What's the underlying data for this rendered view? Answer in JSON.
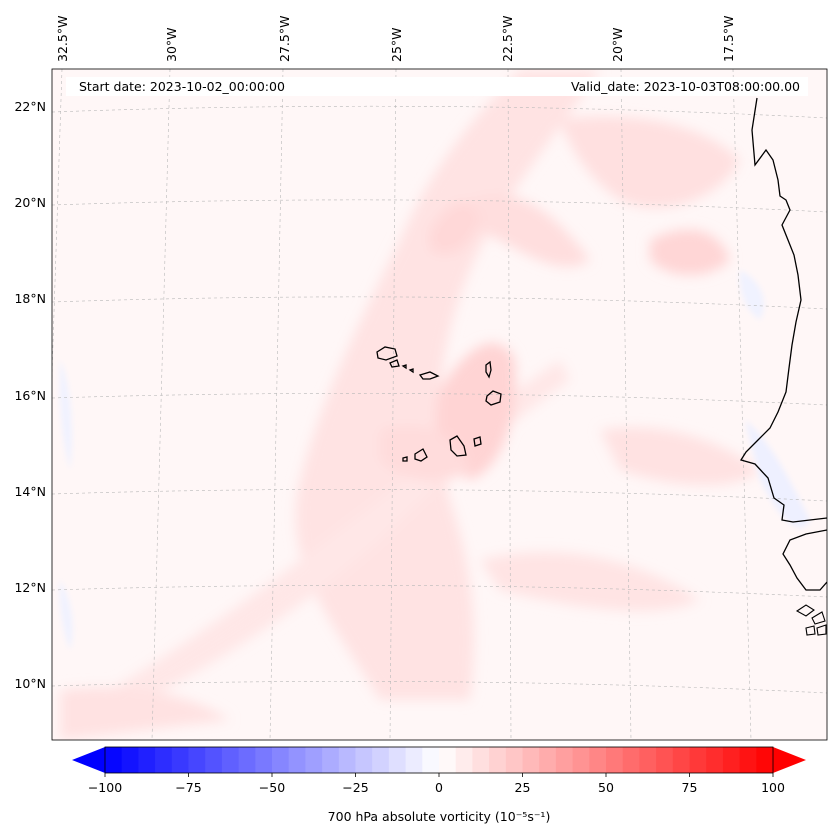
{
  "header": {
    "start_date": "Start date: 2023-10-02_00:00:00",
    "valid_date": "Valid_date: 2023-10-03T08:00:00.00"
  },
  "longitude_ticks": [
    "32.5°W",
    "30°W",
    "27.5°W",
    "25°W",
    "22.5°W",
    "20°W",
    "17.5°W"
  ],
  "latitude_ticks": [
    "22°N",
    "20°N",
    "18°N",
    "16°N",
    "14°N",
    "12°N",
    "10°N"
  ],
  "colorbar": {
    "label": "700 hPa absolute vorticity (10⁻⁵s⁻¹)",
    "min": -100,
    "max": 100,
    "ticks": [
      "−100",
      "−75",
      "−50",
      "−25",
      "0",
      "25",
      "50",
      "75",
      "100"
    ],
    "tick_values": [
      -100,
      -75,
      -50,
      -25,
      0,
      25,
      50,
      75,
      100
    ],
    "step": 5,
    "color_negative": "#0000ff",
    "color_zero": "#ffffff",
    "color_positive": "#ff0000"
  },
  "chart_data": {
    "type": "heatmap",
    "variable": "700 hPa absolute vorticity",
    "units": "10^-5 s^-1",
    "lon_range": [
      -33,
      -14
    ],
    "lat_range": [
      9,
      23
    ],
    "features": [
      "Cape Verde Islands",
      "West African coastline"
    ]
  }
}
